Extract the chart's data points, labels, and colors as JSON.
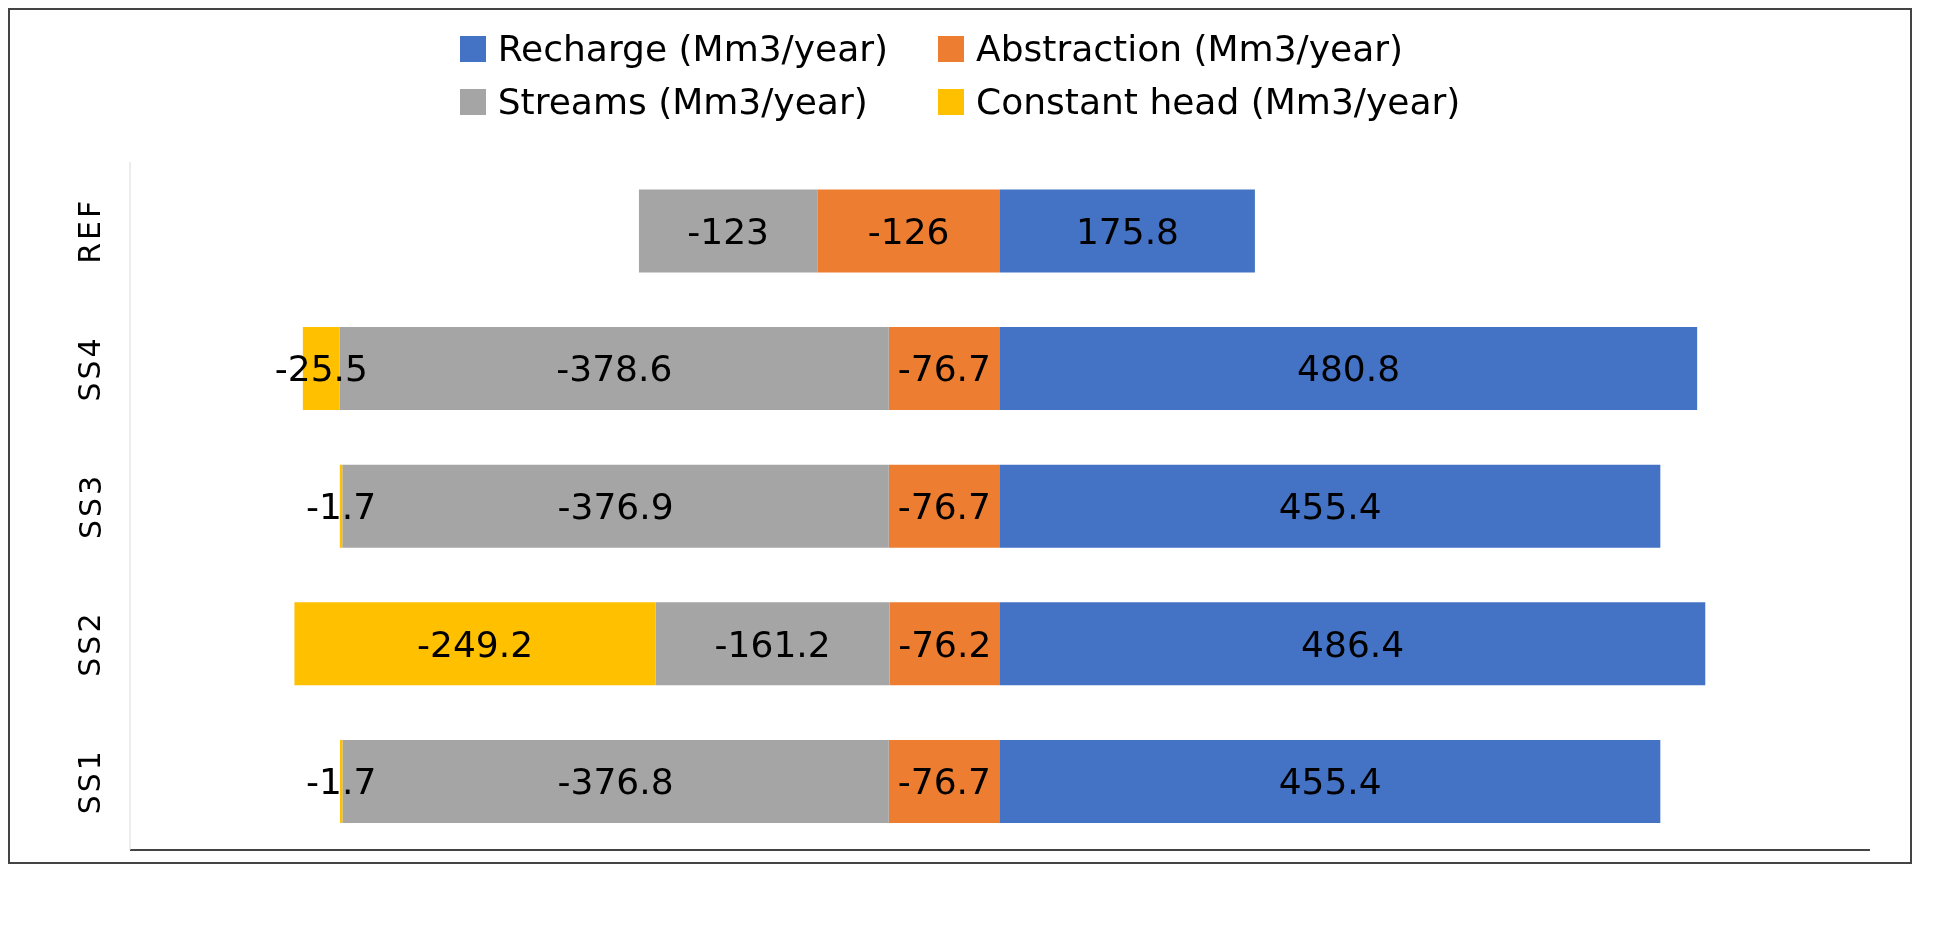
{
  "chart_data": {
    "type": "bar",
    "orientation": "horizontal",
    "stacked": true,
    "categories": [
      "REF",
      "SS4",
      "SS3",
      "SS2",
      "SS1"
    ],
    "series": [
      {
        "name": "Recharge (Mm3/year)",
        "color": "#4472c4",
        "values": [
          175.8,
          480.8,
          455.4,
          486.4,
          455.4
        ]
      },
      {
        "name": "Abstraction (Mm3/year)",
        "color": "#ed7d31",
        "values": [
          -126,
          -76.7,
          -76.7,
          -76.2,
          -76.7
        ]
      },
      {
        "name": "Streams (Mm3/year)",
        "color": "#a5a5a5",
        "values": [
          -123,
          -378.6,
          -376.9,
          -161.2,
          -376.8
        ]
      },
      {
        "name": "Constant head (Mm3/year)",
        "color": "#ffc000",
        "values": [
          null,
          -25.5,
          -1.7,
          -249.2,
          -1.7
        ]
      }
    ],
    "xlim": [
      -600,
      600
    ],
    "tick_labels": "y",
    "data_labels": true,
    "legend": "top"
  }
}
